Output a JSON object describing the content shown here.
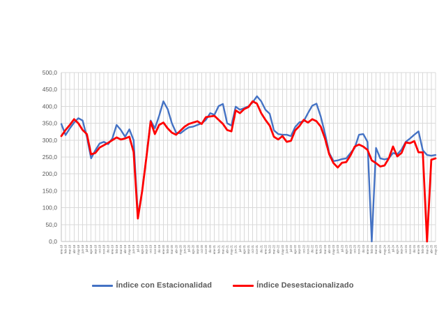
{
  "chart_data": {
    "type": "line",
    "title": "",
    "xlabel": "",
    "ylabel": "",
    "ylim": [
      0,
      500
    ],
    "ytick_step": 50,
    "ytick_labels": [
      "0,0",
      "50,0",
      "100,0",
      "150,0",
      "200,0",
      "250,0",
      "300,0",
      "350,0",
      "400,0",
      "450,0",
      "500,0"
    ],
    "grid": "both",
    "legend_position": "bottom-center",
    "gridline_color": "#D9D9D9",
    "axis_line_color": "#BFBFBF",
    "axis_label_color": "#595959",
    "x_labels": [
      "ene-18",
      "feb-18",
      "mar-18",
      "abr-18",
      "may-18",
      "jun-18",
      "jul-18",
      "ago-18",
      "sep-18",
      "oct-18",
      "nov-18",
      "dic-18",
      "ene-19",
      "feb-19",
      "mar-19",
      "abr-19",
      "may-19",
      "jun-19",
      "jul-19",
      "ago-19",
      "sep-19",
      "oct-19",
      "nov-19",
      "dic-19",
      "ene-20",
      "feb-20",
      "mar-20",
      "abr-20",
      "may-20",
      "jun-20",
      "jul-20",
      "ago-20",
      "sep-20",
      "oct-20",
      "nov-20",
      "dic-20",
      "ene-21",
      "feb-21",
      "mar-21",
      "abr-21",
      "may-21",
      "jun-21",
      "jul-21",
      "ago-21",
      "sep-21",
      "oct-21",
      "nov-21",
      "dic-21",
      "ene-22",
      "feb-22",
      "mar-22",
      "abr-22",
      "may-22",
      "jun-22",
      "jul-22",
      "ago-22",
      "sep-22",
      "oct-22",
      "nov-22",
      "dic-22",
      "ene-23",
      "feb-23",
      "mar-23",
      "abr-23",
      "may-23",
      "jun-23",
      "jul-23",
      "ago-23",
      "sep-23",
      "oct-23",
      "nov-23",
      "dic-23",
      "ene-24",
      "feb-24",
      "mar-24",
      "abr-24",
      "may-24",
      "jun-24",
      "jul-24",
      "ago-24",
      "sep-24",
      "oct-24",
      "nov-24",
      "dic-24",
      "ene-25",
      "feb-25",
      "mar-25",
      "abr-25",
      "may-25"
    ],
    "series": [
      {
        "name": "Índice con Estacionalidad",
        "color": "#4472C4",
        "values": [
          348,
          315,
          335,
          352,
          365,
          358,
          310,
          246,
          270,
          290,
          295,
          288,
          305,
          345,
          330,
          310,
          332,
          300,
          75,
          150,
          250,
          358,
          335,
          372,
          415,
          392,
          350,
          322,
          320,
          330,
          338,
          340,
          345,
          350,
          360,
          380,
          375,
          401,
          407,
          350,
          343,
          399,
          390,
          395,
          400,
          412,
          430,
          415,
          390,
          378,
          329,
          318,
          316,
          316,
          312,
          339,
          353,
          356,
          380,
          402,
          408,
          370,
          320,
          262,
          238,
          240,
          244,
          246,
          262,
          277,
          316,
          318,
          295,
          0,
          277,
          246,
          243,
          246,
          262,
          258,
          272,
          295,
          305,
          316,
          326,
          270,
          256,
          254,
          256
        ]
      },
      {
        "name": "Índice Desestacionalizado",
        "color": "#FF0000",
        "values": [
          312,
          330,
          345,
          362,
          350,
          330,
          318,
          258,
          262,
          278,
          285,
          292,
          300,
          308,
          302,
          305,
          310,
          265,
          68,
          148,
          248,
          355,
          318,
          345,
          352,
          335,
          322,
          316,
          328,
          340,
          348,
          352,
          356,
          348,
          368,
          370,
          372,
          360,
          348,
          330,
          326,
          388,
          380,
          392,
          398,
          415,
          408,
          380,
          360,
          343,
          310,
          302,
          312,
          295,
          298,
          329,
          342,
          360,
          352,
          362,
          356,
          340,
          305,
          258,
          232,
          219,
          233,
          235,
          255,
          281,
          287,
          281,
          271,
          240,
          232,
          222,
          225,
          246,
          281,
          252,
          262,
          293,
          291,
          297,
          264,
          264,
          0,
          242,
          246
        ]
      }
    ]
  },
  "legend": {
    "item1": "Índice con Estacionalidad",
    "item2": "Índice Desestacionalizado"
  }
}
